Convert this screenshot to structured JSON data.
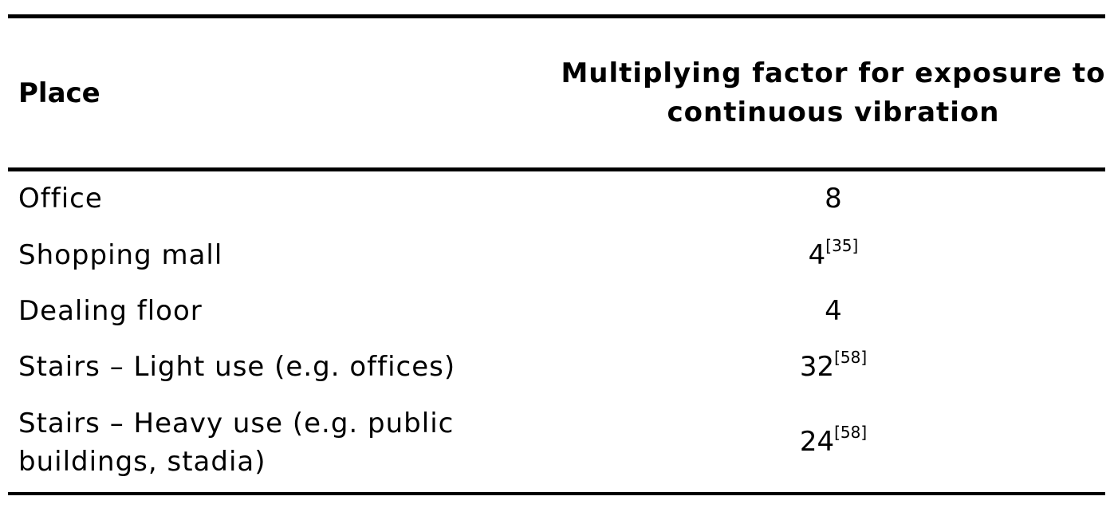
{
  "table": {
    "header": {
      "place": "Place",
      "factor": "Multiplying factor for exposure to continuous vibration"
    },
    "rows": [
      {
        "place": "Office",
        "factor": "8",
        "ref": ""
      },
      {
        "place": "Shopping mall",
        "factor": "4",
        "ref": "[35]"
      },
      {
        "place": "Dealing floor",
        "factor": "4",
        "ref": ""
      },
      {
        "place": "Stairs – Light use (e.g. offices)",
        "factor": "32",
        "ref": "[58]"
      },
      {
        "place": "Stairs – Heavy use (e.g. public\nbuildings, stadia)",
        "factor": "24",
        "ref": "[58]"
      }
    ]
  }
}
